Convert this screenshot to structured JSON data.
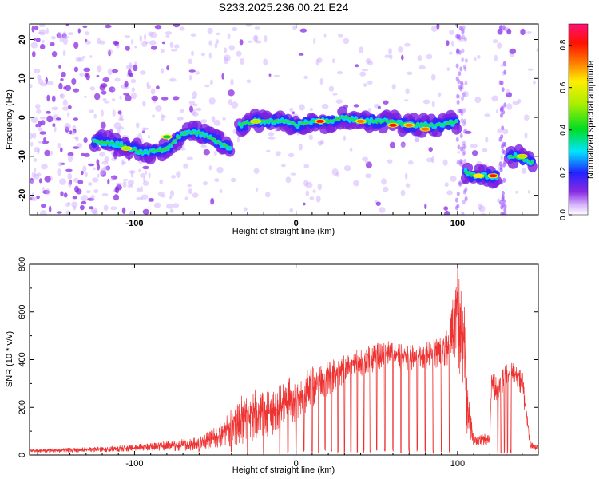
{
  "title": "S233.2025.236.00.21.E24",
  "chart_data": [
    {
      "type": "heatmap",
      "xlabel": "Height of straight line (km)",
      "ylabel": "Frequency (Hz)",
      "xlim": [
        -165,
        150
      ],
      "ylim": [
        -25,
        24
      ],
      "xticks": [
        -100,
        0,
        100
      ],
      "xtick_labels": [
        "-100",
        "0",
        "100"
      ],
      "yticks": [
        -20,
        -10,
        0,
        10,
        20
      ],
      "ytick_labels": [
        "-20",
        "-10",
        "0",
        "10",
        "20"
      ],
      "colorbar": {
        "label": "Normalized spectral amplitude",
        "range": [
          0,
          0.9
        ],
        "ticks": [
          0,
          0.2,
          0.4,
          0.6,
          0.8
        ],
        "tick_labels": [
          "0.0",
          "0.2",
          "0.4",
          "0.6",
          "0.8"
        ]
      },
      "ridge": {
        "segments": [
          {
            "x": [
              -125,
              -110,
              -95,
              -80,
              -70,
              -60,
              -50,
              -40
            ],
            "y": [
              -6,
              -7,
              -9,
              -8,
              -4,
              -4,
              -6,
              -8
            ]
          },
          {
            "x": [
              -35,
              -25,
              -15,
              -5,
              0,
              10,
              20,
              30,
              40,
              50,
              60,
              70,
              80,
              90,
              100
            ],
            "y": [
              -2,
              -1,
              -1,
              -1,
              -2,
              -1,
              -1,
              0,
              -1,
              -1,
              -1,
              -2,
              -2,
              -2,
              -1
            ]
          },
          {
            "x": [
              105,
              110,
              115,
              120,
              125
            ],
            "y": [
              -14,
              -15,
              -15,
              -15,
              -15
            ]
          },
          {
            "x": [
              132,
              137,
              142,
              147
            ],
            "y": [
              -10,
              -10,
              -11,
              -12
            ]
          }
        ],
        "peaks": [
          {
            "x": 15,
            "y": -1,
            "amplitude": 0.9
          },
          {
            "x": 60,
            "y": -2,
            "amplitude": 0.88
          },
          {
            "x": 70,
            "y": -2,
            "amplitude": 0.85
          },
          {
            "x": 80,
            "y": -3,
            "amplitude": 0.82
          },
          {
            "x": 40,
            "y": -1,
            "amplitude": 0.8
          },
          {
            "x": 122,
            "y": -15,
            "amplitude": 0.9
          },
          {
            "x": 113,
            "y": -15,
            "amplitude": 0.7
          },
          {
            "x": -105,
            "y": -8,
            "amplitude": 0.55
          },
          {
            "x": -80,
            "y": -5,
            "amplitude": 0.5
          },
          {
            "x": -25,
            "y": -1,
            "amplitude": 0.55
          },
          {
            "x": 140,
            "y": -10,
            "amplitude": 0.6
          }
        ]
      }
    },
    {
      "type": "line",
      "xlabel": "Height of straight line (km)",
      "ylabel": "SNR (10 * v/v)",
      "xlim": [
        -165,
        150
      ],
      "ylim": [
        0,
        800
      ],
      "xticks": [
        -100,
        0,
        100
      ],
      "xtick_labels": [
        "-100",
        "0",
        "100"
      ],
      "yticks": [
        0,
        200,
        400,
        600,
        800
      ],
      "ytick_labels": [
        "0",
        "200",
        "400",
        "600",
        "800"
      ],
      "color": "#ee3333",
      "envelope": {
        "x": [
          -165,
          -140,
          -120,
          -100,
          -80,
          -60,
          -45,
          -35,
          -25,
          -15,
          -5,
          0,
          10,
          20,
          30,
          40,
          50,
          60,
          70,
          80,
          90,
          95,
          100,
          104,
          106,
          110,
          120,
          121,
          125,
          130,
          135,
          140,
          145,
          150
        ],
        "upper": [
          25,
          30,
          35,
          45,
          60,
          75,
          150,
          250,
          280,
          260,
          330,
          320,
          380,
          400,
          420,
          450,
          470,
          480,
          460,
          470,
          500,
          560,
          800,
          700,
          300,
          90,
          90,
          350,
          330,
          380,
          390,
          380,
          60,
          40
        ],
        "lower": [
          10,
          10,
          12,
          15,
          15,
          20,
          30,
          40,
          60,
          80,
          150,
          130,
          200,
          250,
          300,
          330,
          350,
          360,
          350,
          350,
          350,
          380,
          400,
          220,
          80,
          40,
          40,
          250,
          200,
          300,
          300,
          250,
          20,
          20
        ],
        "dropout_x": [
          -60,
          -40,
          -30,
          -20,
          -10,
          -5,
          0,
          5,
          10,
          14,
          18,
          22,
          26,
          30,
          34,
          38,
          42,
          46,
          50,
          55,
          60,
          65,
          70,
          75,
          80,
          85,
          90,
          95,
          125,
          127,
          129,
          131,
          133
        ]
      }
    }
  ]
}
